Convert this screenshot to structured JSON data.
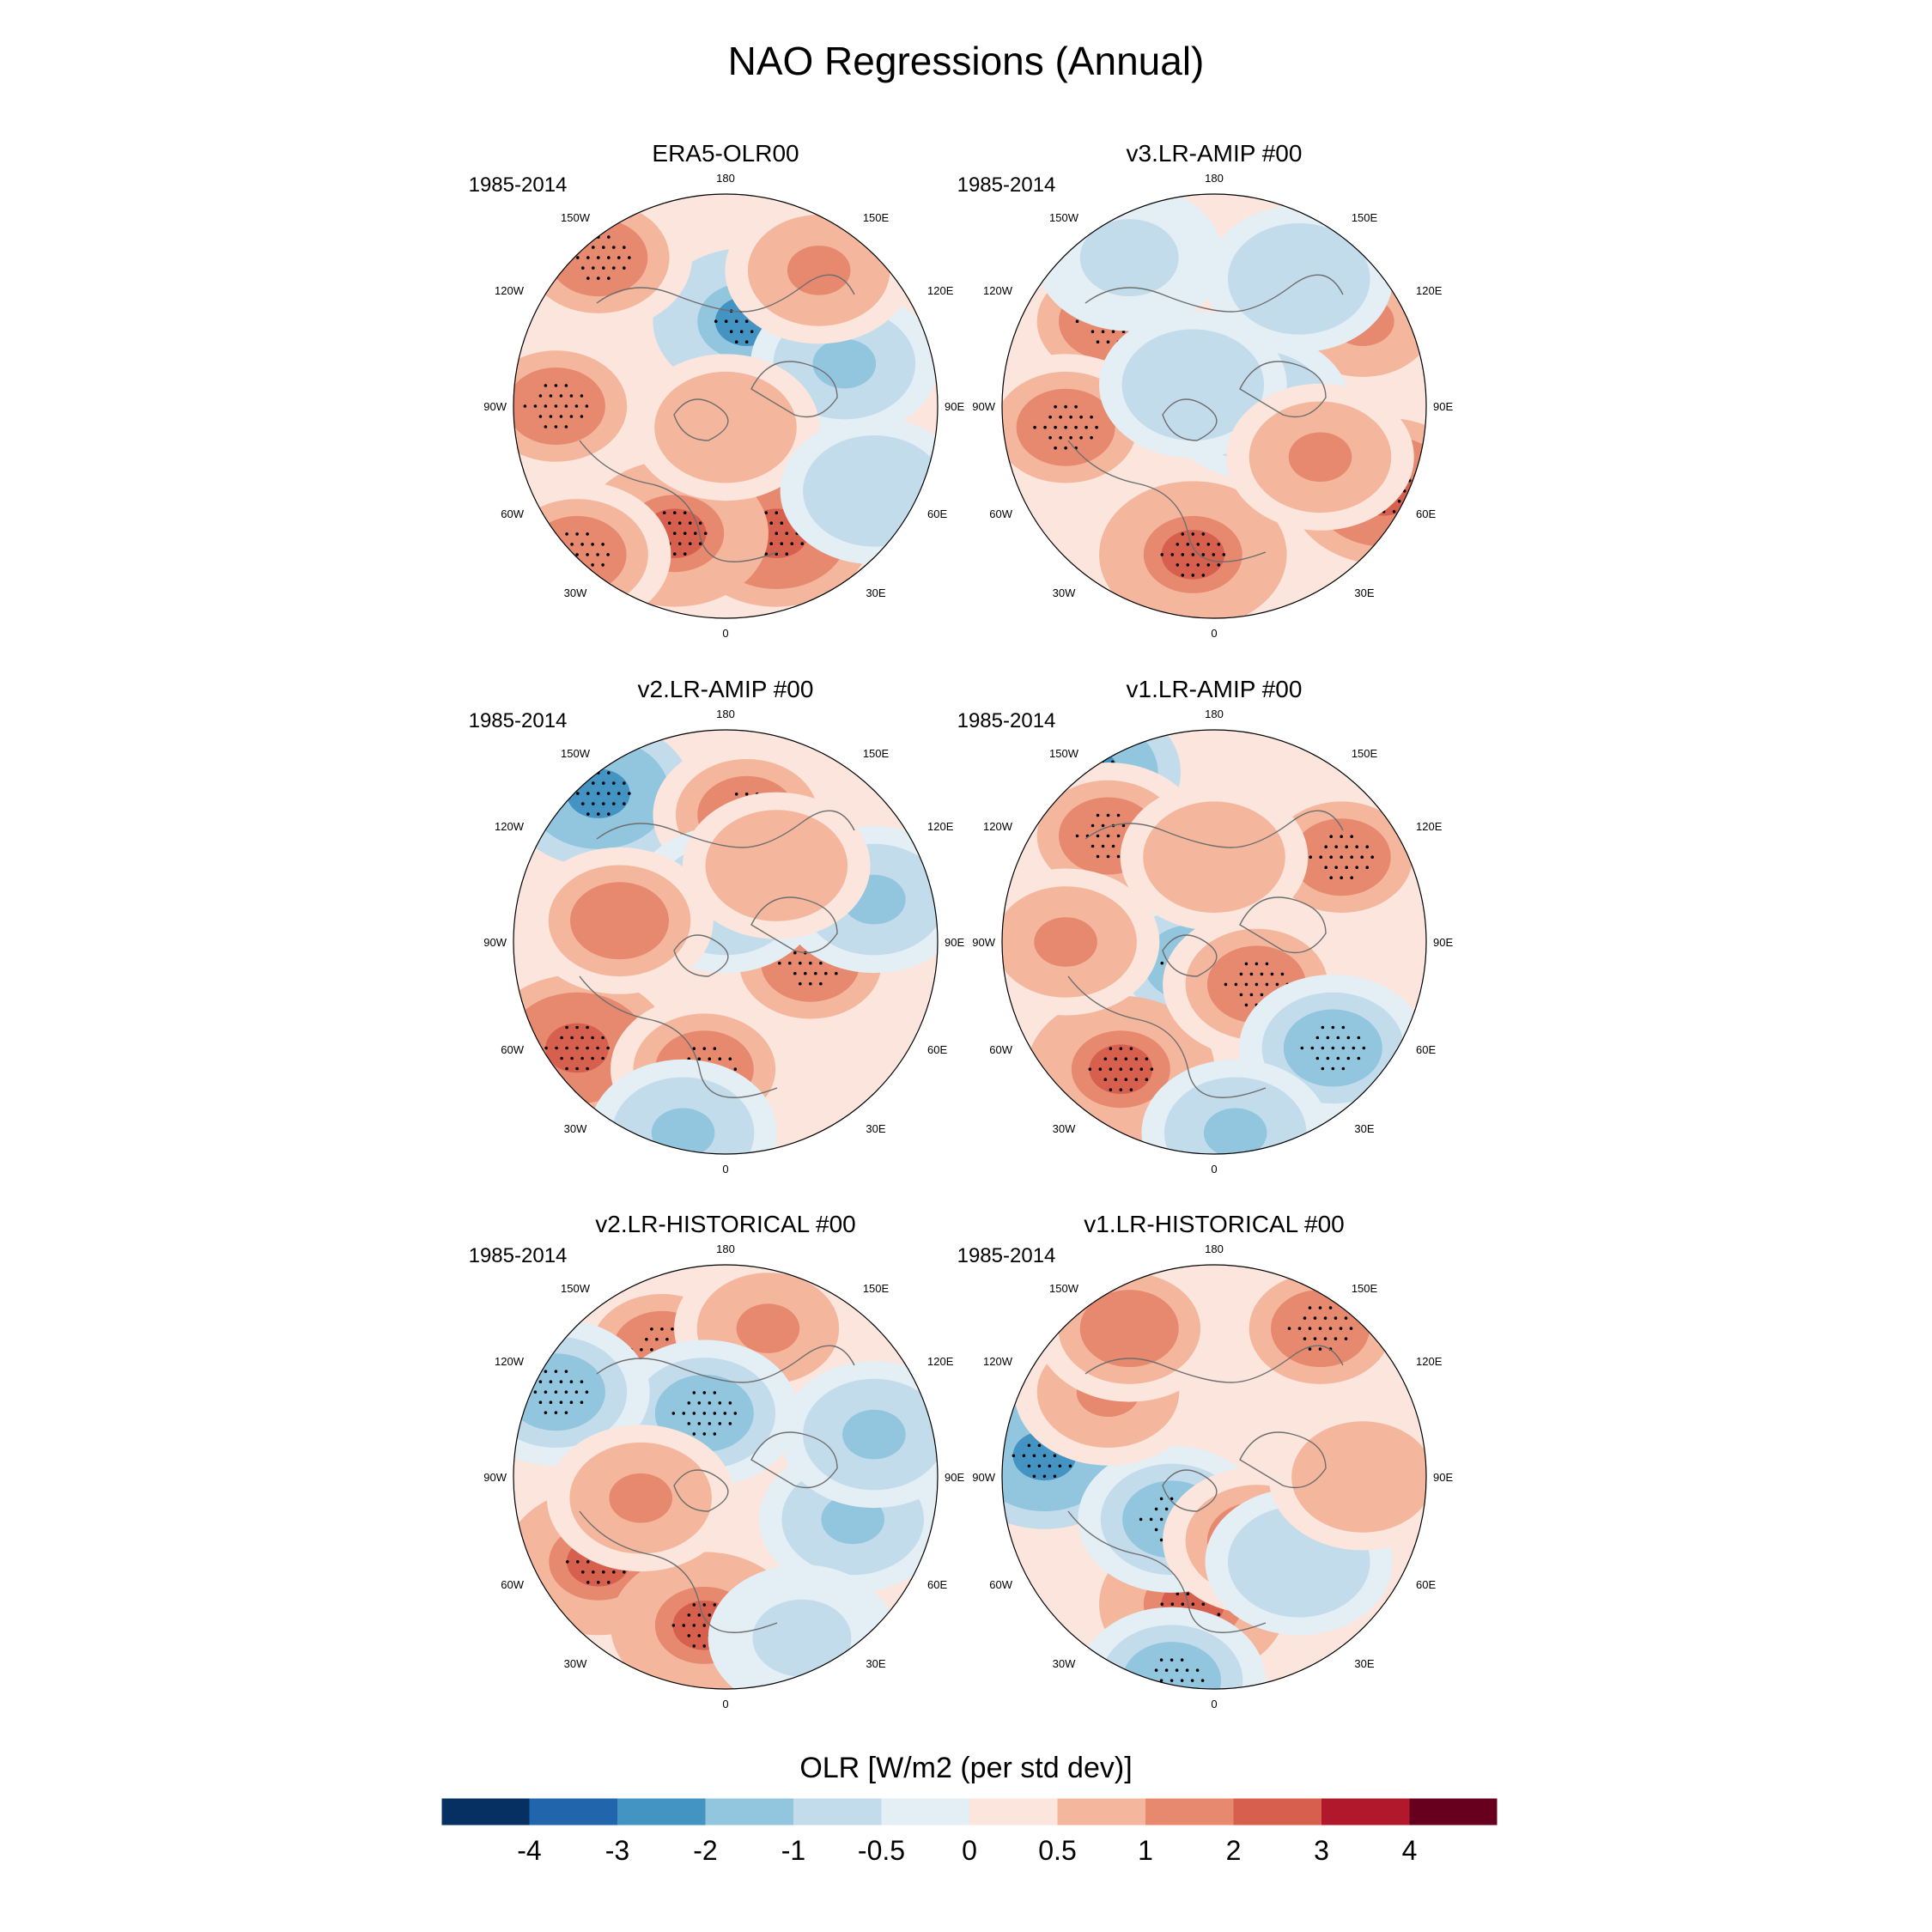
{
  "title": "NAO Regressions (Annual)",
  "period_label": "1985-2014",
  "panels": [
    {
      "title": "ERA5-OLR00",
      "blobs": [
        [
          0.55,
          0.3,
          -2.2
        ],
        [
          0.2,
          0.15,
          1.6
        ],
        [
          0.62,
          0.8,
          2.4
        ],
        [
          0.38,
          0.8,
          2.0
        ],
        [
          0.78,
          0.4,
          -1.2
        ],
        [
          0.15,
          0.85,
          1.5
        ],
        [
          0.72,
          0.18,
          1.3
        ],
        [
          0.5,
          0.55,
          0.6
        ],
        [
          0.1,
          0.5,
          1.8
        ],
        [
          0.85,
          0.7,
          -0.6
        ]
      ]
    },
    {
      "title": "v3.LR-AMIP  #00",
      "blobs": [
        [
          0.25,
          0.3,
          1.8
        ],
        [
          0.85,
          0.3,
          1.4
        ],
        [
          0.9,
          0.7,
          2.8
        ],
        [
          0.45,
          0.85,
          2.0
        ],
        [
          0.6,
          0.5,
          -0.8
        ],
        [
          0.15,
          0.55,
          1.6
        ],
        [
          0.3,
          0.15,
          -0.7
        ],
        [
          0.7,
          0.2,
          -0.6
        ],
        [
          0.45,
          0.45,
          -1.0
        ],
        [
          0.75,
          0.62,
          1.2
        ]
      ]
    },
    {
      "title": "v2.LR-AMIP  #00",
      "blobs": [
        [
          0.2,
          0.15,
          -2.4
        ],
        [
          0.55,
          0.2,
          1.8
        ],
        [
          0.15,
          0.75,
          2.6
        ],
        [
          0.45,
          0.8,
          1.6
        ],
        [
          0.7,
          0.55,
          1.8
        ],
        [
          0.85,
          0.4,
          -1.2
        ],
        [
          0.5,
          0.4,
          -0.6
        ],
        [
          0.4,
          0.95,
          -1.4
        ],
        [
          0.25,
          0.45,
          1.0
        ],
        [
          0.62,
          0.32,
          0.8
        ]
      ]
    },
    {
      "title": "v1.LR-AMIP  #00",
      "blobs": [
        [
          0.2,
          0.1,
          -2.6
        ],
        [
          0.25,
          0.25,
          1.6
        ],
        [
          0.8,
          0.3,
          1.8
        ],
        [
          0.45,
          0.55,
          -1.8
        ],
        [
          0.28,
          0.8,
          2.0
        ],
        [
          0.6,
          0.6,
          1.6
        ],
        [
          0.78,
          0.75,
          -1.5
        ],
        [
          0.55,
          0.95,
          -1.2
        ],
        [
          0.15,
          0.5,
          1.4
        ],
        [
          0.5,
          0.3,
          0.8
        ]
      ]
    },
    {
      "title": "v2.LR-HISTORICAL  #00",
      "blobs": [
        [
          0.35,
          0.2,
          1.8
        ],
        [
          0.6,
          0.15,
          1.4
        ],
        [
          0.45,
          0.35,
          -1.8
        ],
        [
          0.2,
          0.7,
          2.2
        ],
        [
          0.45,
          0.85,
          2.0
        ],
        [
          0.8,
          0.6,
          -1.2
        ],
        [
          0.1,
          0.3,
          -1.8
        ],
        [
          0.85,
          0.4,
          -1.4
        ],
        [
          0.3,
          0.55,
          1.2
        ],
        [
          0.68,
          0.88,
          -0.7
        ]
      ]
    },
    {
      "title": "v1.LR-HISTORICAL  #00",
      "blobs": [
        [
          0.1,
          0.45,
          -2.8
        ],
        [
          0.75,
          0.15,
          1.8
        ],
        [
          0.45,
          0.8,
          2.0
        ],
        [
          0.4,
          0.6,
          -1.6
        ],
        [
          0.4,
          0.98,
          -1.8
        ],
        [
          0.6,
          0.65,
          1.0
        ],
        [
          0.25,
          0.3,
          1.2
        ],
        [
          0.7,
          0.7,
          -1.0
        ],
        [
          0.3,
          0.15,
          1.0
        ],
        [
          0.85,
          0.5,
          0.6
        ]
      ]
    }
  ],
  "map_labels": {
    "top": "180",
    "bottom": "0",
    "left_upper": "150W",
    "right_upper": "150E",
    "left_mid_upper": "120W",
    "right_mid_upper": "120E",
    "left_mid": "90W",
    "right_mid": "90E",
    "left_mid_lower": "60W",
    "right_mid_lower": "60E",
    "left_lower": "30W",
    "right_lower": "30E"
  },
  "colorbar": {
    "title": "OLR [W/m2 (per std dev)]",
    "ticks": [
      "-4",
      "-3",
      "-2",
      "-1",
      "-0.5",
      "0",
      "0.5",
      "1",
      "2",
      "3",
      "4"
    ],
    "levels": [
      -4,
      -3,
      -2,
      -1,
      -0.5,
      0,
      0.5,
      1,
      2,
      3,
      4
    ],
    "colors": [
      "#053061",
      "#2166ac",
      "#4393c3",
      "#92c5de",
      "#c3dcec",
      "#e4eef5",
      "#fbe5dc",
      "#f4b79d",
      "#e7896f",
      "#d6604d",
      "#b2182b",
      "#67001f"
    ]
  }
}
